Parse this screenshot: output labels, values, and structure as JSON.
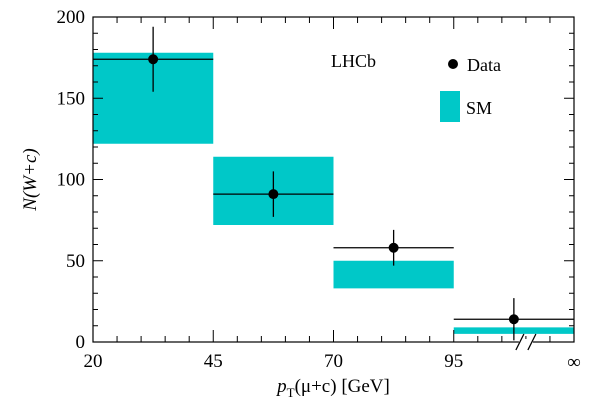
{
  "chart_data": {
    "type": "bar",
    "title": "",
    "annotation": "LHCb",
    "xlabel_parts": {
      "p": "p",
      "sub": "T",
      "rest": "(μ+c) [GeV]"
    },
    "ylabel_parts": {
      "N": "N",
      "rest": "(W+c)"
    },
    "x_tick_labels": [
      "20",
      "45",
      "70",
      "95",
      "∞"
    ],
    "y_ticks": [
      0,
      50,
      100,
      150,
      200
    ],
    "ylim": [
      0,
      200
    ],
    "bins": [
      {
        "range": "20-45",
        "data": 174,
        "data_err_up": 20,
        "data_err_down": 20,
        "sm_low": 122,
        "sm_high": 178
      },
      {
        "range": "45-70",
        "data": 91,
        "data_err_up": 14,
        "data_err_down": 14,
        "sm_low": 72,
        "sm_high": 114
      },
      {
        "range": "70-95",
        "data": 58,
        "data_err_up": 11,
        "data_err_down": 11,
        "sm_low": 33,
        "sm_high": 50
      },
      {
        "range": "95-∞",
        "data": 14,
        "data_err_up": 13,
        "data_err_down": 13,
        "sm_low": 5,
        "sm_high": 9
      }
    ],
    "legend": {
      "placement": "top-right",
      "entries": [
        {
          "label": "Data",
          "marker": "point"
        },
        {
          "label": "SM",
          "marker": "box"
        }
      ]
    },
    "colors": {
      "sm": "#00c8c8",
      "data": "#000000"
    },
    "axis_break": true
  }
}
